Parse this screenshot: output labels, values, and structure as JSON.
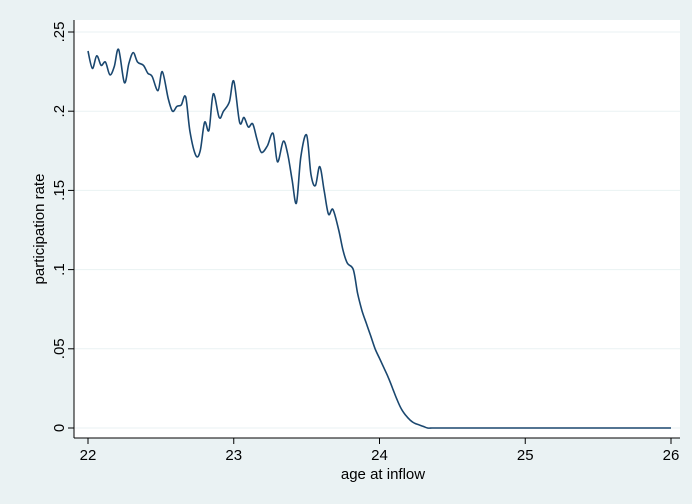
{
  "chart_data": {
    "type": "line",
    "title": "",
    "xlabel": "age at inflow",
    "ylabel": "participation rate",
    "xlim": [
      22,
      26
    ],
    "ylim": [
      0,
      0.25
    ],
    "x_ticks": [
      22,
      23,
      24,
      25,
      26
    ],
    "x_tick_labels": [
      "22",
      "23",
      "24",
      "25",
      "26"
    ],
    "y_ticks": [
      0,
      0.05,
      0.1,
      0.15,
      0.2,
      0.25
    ],
    "y_tick_labels": [
      "0",
      ".05",
      ".1",
      ".15",
      ".2",
      ".25"
    ],
    "grid": "horizontal",
    "colors": {
      "background": "#eaf2f3",
      "plot_area": "#ffffff",
      "line": "#1a476f",
      "grid": "#eaf2f3"
    },
    "series": [
      {
        "x": [
          22.0,
          22.03,
          22.06,
          22.09,
          22.12,
          22.15,
          22.18,
          22.21,
          22.25,
          22.28,
          22.31,
          22.34,
          22.38,
          22.41,
          22.44,
          22.48,
          22.51,
          22.55,
          22.58,
          22.61,
          22.64,
          22.67,
          22.7,
          22.74,
          22.77,
          22.8,
          22.83,
          22.86,
          22.9,
          22.93,
          22.97,
          23.0,
          23.04,
          23.07,
          23.1,
          23.13,
          23.16,
          23.19,
          23.23,
          23.27,
          23.3,
          23.34,
          23.37,
          23.4,
          23.43,
          23.46,
          23.5,
          23.53,
          23.56,
          23.59,
          23.62,
          23.65,
          23.68,
          23.72,
          23.75,
          23.78,
          23.82,
          23.85,
          23.88,
          23.91,
          23.94,
          23.97,
          24.0,
          24.03,
          24.06,
          24.09,
          24.12,
          24.15,
          24.18,
          24.21,
          24.24,
          24.27,
          24.3,
          24.33,
          24.36,
          24.39,
          24.42,
          24.45,
          24.48,
          24.52,
          24.55,
          24.58,
          24.61,
          24.65,
          24.7,
          24.75,
          24.8,
          24.85,
          24.9,
          24.95,
          25.0,
          25.04,
          25.07,
          25.1,
          25.5,
          26.0
        ],
        "y": [
          0.238,
          0.227,
          0.235,
          0.229,
          0.231,
          0.223,
          0.228,
          0.239,
          0.218,
          0.23,
          0.237,
          0.231,
          0.229,
          0.224,
          0.222,
          0.213,
          0.225,
          0.208,
          0.2,
          0.203,
          0.204,
          0.209,
          0.187,
          0.172,
          0.175,
          0.193,
          0.188,
          0.211,
          0.196,
          0.2,
          0.206,
          0.219,
          0.193,
          0.196,
          0.19,
          0.192,
          0.182,
          0.174,
          0.178,
          0.186,
          0.168,
          0.181,
          0.173,
          0.157,
          0.142,
          0.171,
          0.185,
          0.16,
          0.153,
          0.165,
          0.15,
          0.135,
          0.138,
          0.125,
          0.112,
          0.104,
          0.1,
          0.085,
          0.074,
          0.066,
          0.058,
          0.05,
          0.044,
          0.038,
          0.032,
          0.025,
          0.018,
          0.012,
          0.008,
          0.005,
          0.003,
          0.002,
          0.001,
          0.0,
          0.0,
          0.0,
          0.0,
          0.0,
          0.0,
          0.0,
          0.0,
          0.0,
          0.0,
          0.0,
          0.0,
          0.0,
          0.0,
          0.0,
          0.0,
          0.0,
          0.0,
          0.0,
          0.0,
          0.0,
          0.0,
          0.0
        ]
      }
    ]
  }
}
